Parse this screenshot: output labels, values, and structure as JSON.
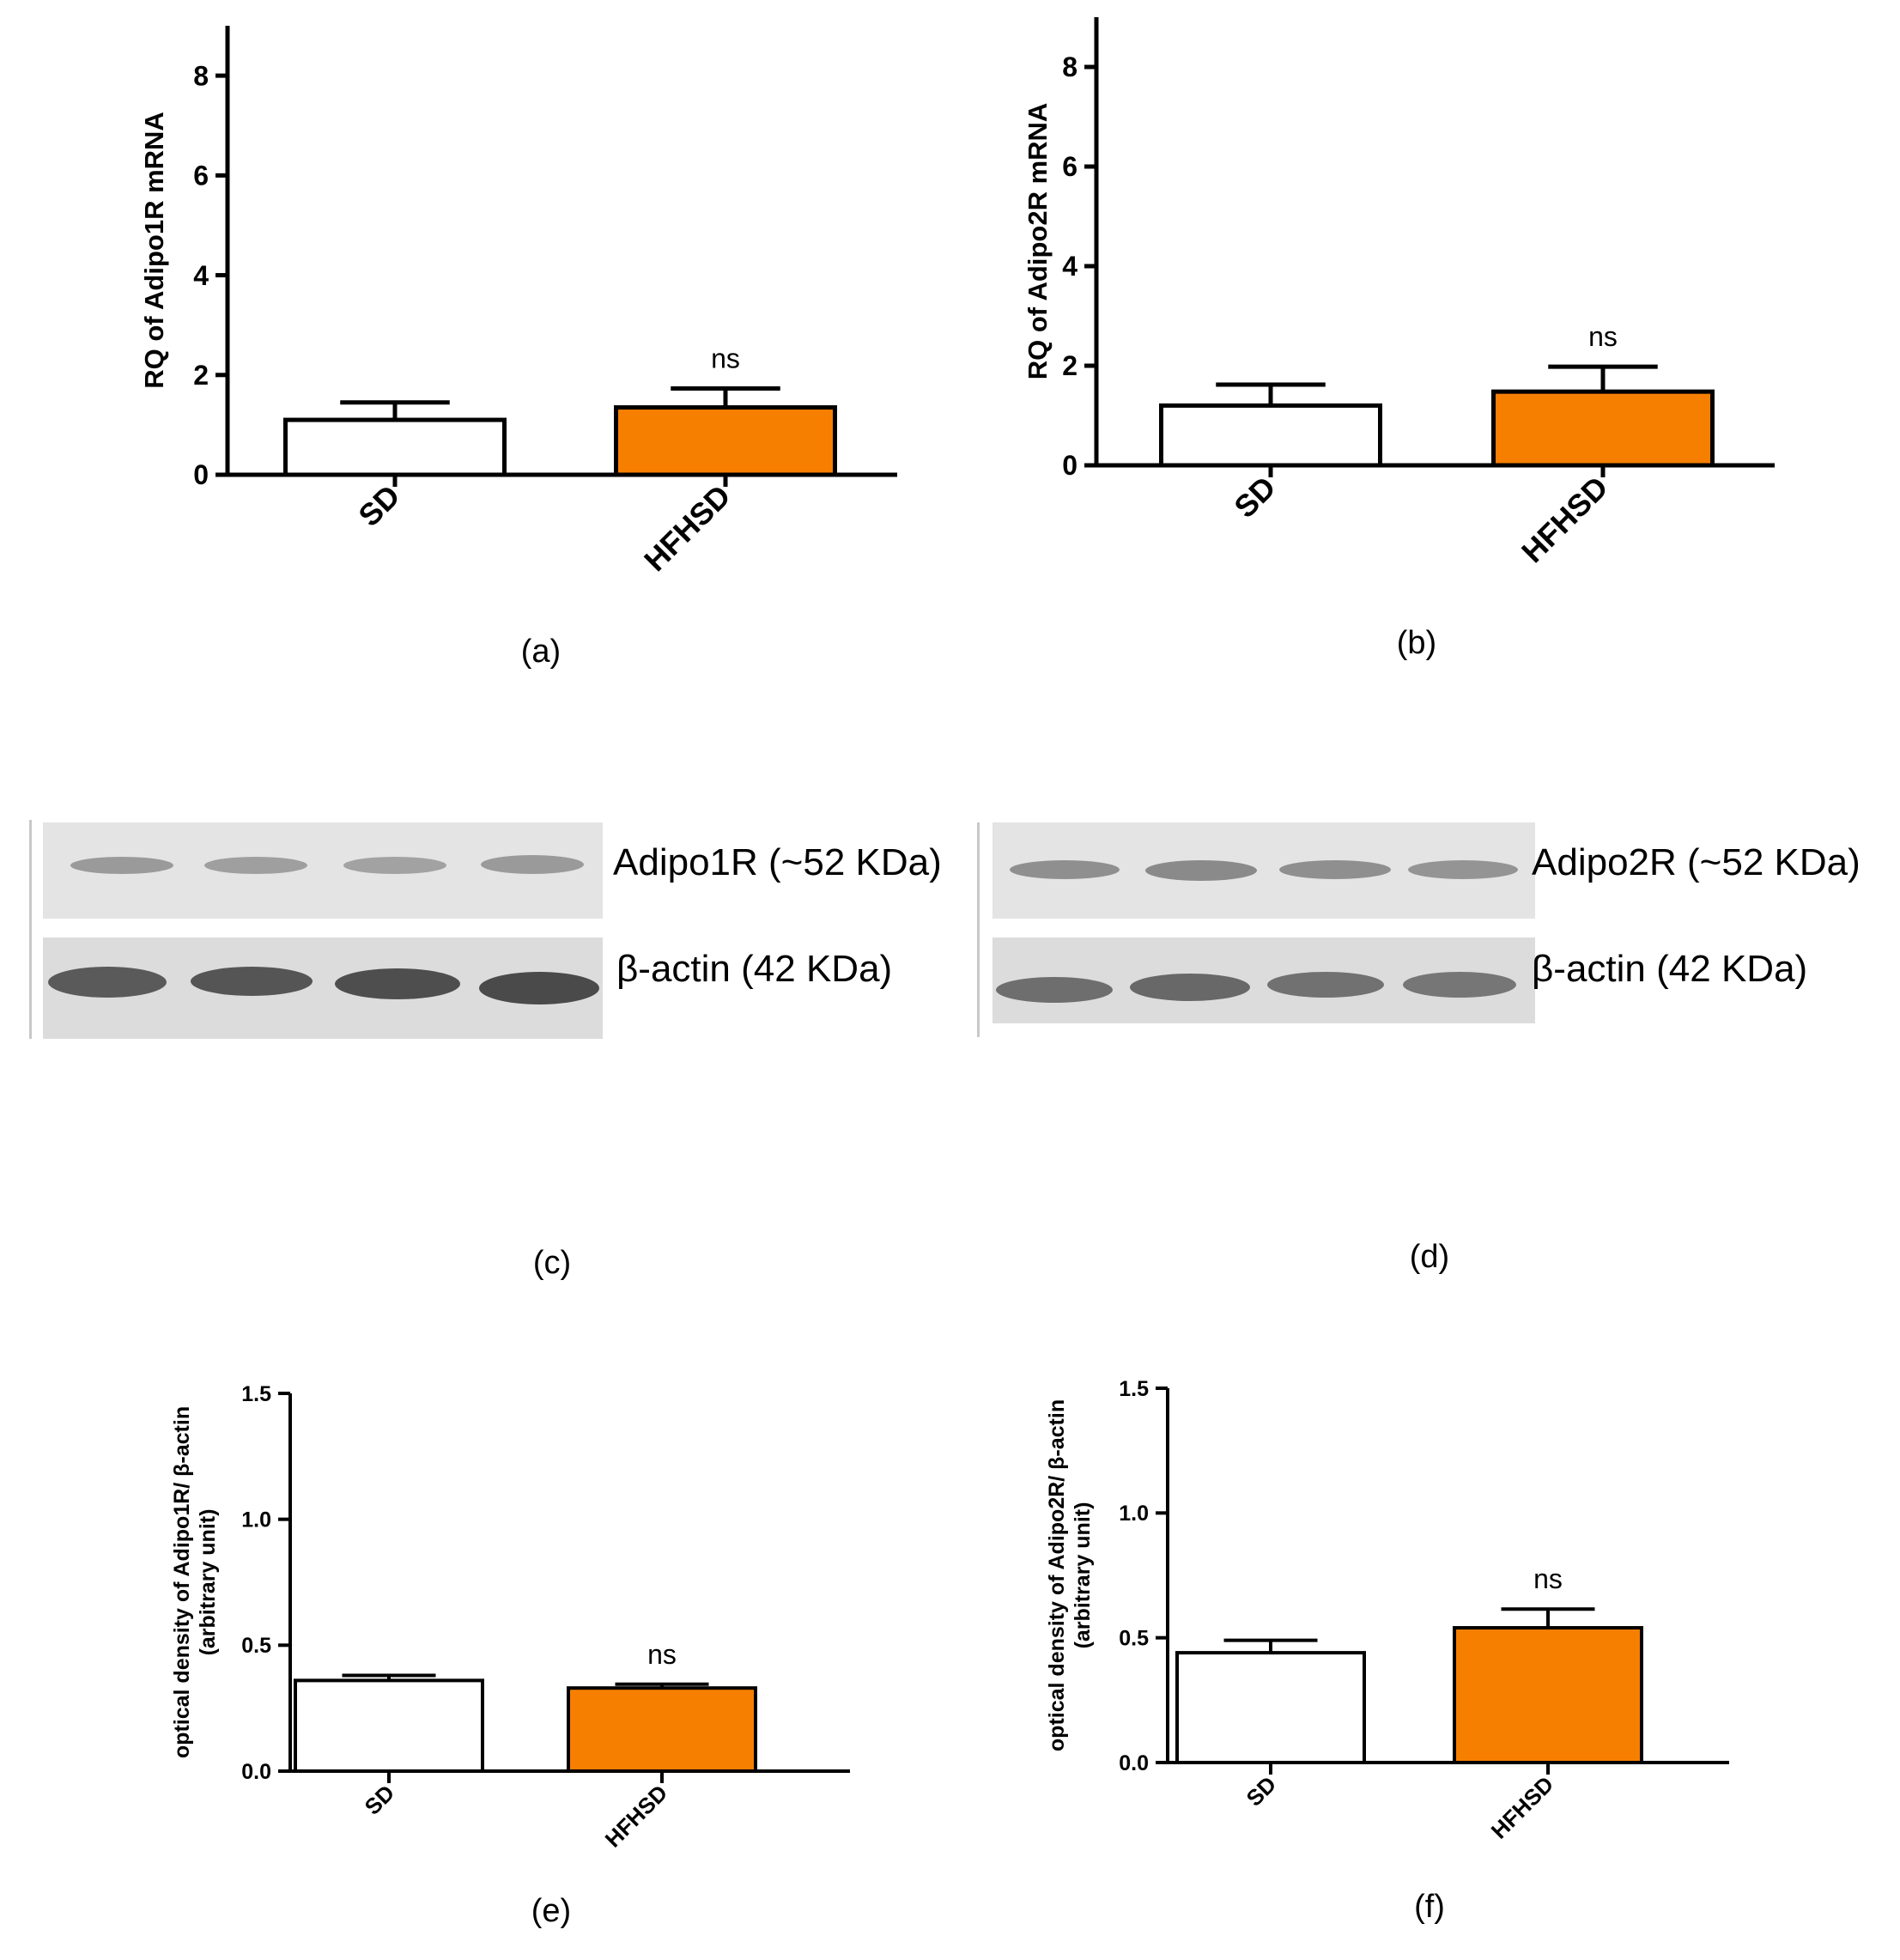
{
  "chart_data": [
    {
      "id": "a",
      "type": "bar",
      "categories": [
        "SD",
        "HFHSD"
      ],
      "values": [
        1.1,
        1.35
      ],
      "errors": [
        0.35,
        0.38
      ],
      "ylabel": "RQ of Adipo1R mRNA",
      "ylim": [
        0,
        9
      ],
      "yticks": [
        "0",
        "2",
        "4",
        "6",
        "8"
      ],
      "ytick_values": [
        0,
        2,
        4,
        6,
        8
      ],
      "annotations": [
        "",
        "ns"
      ],
      "colors": [
        "#ffffff",
        "#f77f00"
      ],
      "panel_label": "(a)"
    },
    {
      "id": "b",
      "type": "bar",
      "categories": [
        "SD",
        "HFHSD"
      ],
      "values": [
        1.2,
        1.48
      ],
      "errors": [
        0.42,
        0.5
      ],
      "ylabel": "RQ of Adipo2R mRNA",
      "ylim": [
        0,
        9
      ],
      "yticks": [
        "0",
        "2",
        "4",
        "6",
        "8"
      ],
      "ytick_values": [
        0,
        2,
        4,
        6,
        8
      ],
      "annotations": [
        "",
        "ns"
      ],
      "colors": [
        "#ffffff",
        "#f77f00"
      ],
      "panel_label": "(b)"
    },
    {
      "id": "e",
      "type": "bar",
      "categories": [
        "SD",
        "HFHSD"
      ],
      "values": [
        0.36,
        0.33
      ],
      "errors": [
        0.02,
        0.015
      ],
      "ylabel": "optical density of Adipo1R/ β-actin",
      "ylabel2": "(arbitrary unit)",
      "ylim": [
        0,
        1.5
      ],
      "yticks": [
        "0.0",
        "0.5",
        "1.0",
        "1.5"
      ],
      "ytick_values": [
        0,
        0.5,
        1.0,
        1.5
      ],
      "annotations": [
        "",
        "ns"
      ],
      "colors": [
        "#ffffff",
        "#f77f00"
      ],
      "panel_label": "(e)"
    },
    {
      "id": "f",
      "type": "bar",
      "categories": [
        "SD",
        "HFHSD"
      ],
      "values": [
        0.44,
        0.54
      ],
      "errors": [
        0.05,
        0.075
      ],
      "ylabel": "optical density of Adipo2R/ β-actin",
      "ylabel2": "(arbitrary unit)",
      "ylim": [
        0,
        1.5
      ],
      "yticks": [
        "0.0",
        "0.5",
        "1.0",
        "1.5"
      ],
      "ytick_values": [
        0,
        0.5,
        1.0,
        1.5
      ],
      "annotations": [
        "",
        "ns"
      ],
      "colors": [
        "#ffffff",
        "#f77f00"
      ],
      "panel_label": "(f)"
    }
  ],
  "blots": {
    "c": {
      "panel_label": "(c)",
      "target_label": "Adipo1R (~52 KDa)",
      "control_label": "β-actin (42 KDa)"
    },
    "d": {
      "panel_label": "(d)",
      "target_label": "Adipo2R (~52 KDa)",
      "control_label": "β-actin (42 KDa)"
    }
  }
}
